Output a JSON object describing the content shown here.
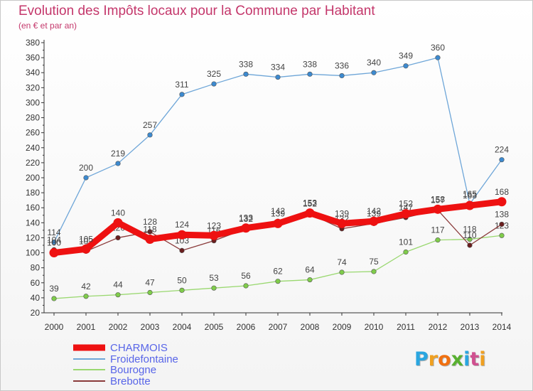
{
  "title": "Evolution des Impôts locaux pour la Commune par Habitant",
  "subtitle": "(en € et par an)",
  "logo": {
    "letters": [
      "P",
      "r",
      "o",
      "x",
      "i",
      "t",
      "i"
    ],
    "colors": [
      "#2aa6e0",
      "#f0a020",
      "#f07010",
      "#58b030",
      "#2aa6e0",
      "#d05090",
      "#f0a020"
    ]
  },
  "chart_data": {
    "type": "line",
    "x": [
      "2000",
      "2001",
      "2002",
      "2003",
      "2004",
      "2005",
      "2006",
      "2007",
      "2008",
      "2009",
      "2010",
      "2011",
      "2012",
      "2013",
      "2014"
    ],
    "ylim": [
      20,
      380
    ],
    "yticks": [
      "20",
      "40",
      "60",
      "80",
      "100",
      "120",
      "140",
      "160",
      "180",
      "200",
      "220",
      "240",
      "260",
      "280",
      "300",
      "320",
      "340",
      "360",
      "380"
    ],
    "grid": false,
    "legend_position": "bottom-left",
    "series": [
      {
        "name": "Froidefontaine",
        "color": "#6ea6d8",
        "marker": "#3c8ad0",
        "values": [
          114,
          200,
          219,
          257,
          311,
          325,
          338,
          334,
          338,
          336,
          340,
          349,
          360,
          165,
          224
        ],
        "labels": [
          "114",
          "200",
          "219",
          "257",
          "311",
          "325",
          "338",
          "334",
          "338",
          "336",
          "340",
          "349",
          "360",
          "165",
          "224"
        ]
      },
      {
        "name": "Bourogne",
        "color": "#9ad870",
        "marker": "#7fcc4a",
        "values": [
          39,
          42,
          44,
          47,
          50,
          53,
          56,
          62,
          64,
          74,
          75,
          101,
          117,
          118,
          123
        ],
        "labels": [
          "39",
          "42",
          "44",
          "47",
          "50",
          "53",
          "56",
          "62",
          "64",
          "74",
          "75",
          "101",
          "117",
          "118",
          "123"
        ]
      },
      {
        "name": "Brebotte",
        "color": "#8a3a3a",
        "marker": "#6a1e1e",
        "values": [
          104,
          102,
          120,
          128,
          103,
          116,
          132,
          142,
          152,
          132,
          139,
          147,
          157,
          110,
          138
        ],
        "labels": [
          "104",
          "102",
          "120",
          "128",
          "103",
          "116",
          "132",
          "142",
          "152",
          "132",
          "139",
          "147",
          "157",
          "110",
          "138"
        ]
      },
      {
        "name": "CHARMOIS",
        "color": "#ee1111",
        "marker": "#ee1111",
        "values": [
          100,
          105,
          140,
          118,
          124,
          123,
          133,
          139,
          153,
          139,
          142,
          152,
          158,
          163,
          168
        ],
        "labels": [
          "100",
          "105",
          "140",
          "118",
          "124",
          "123",
          "133",
          "139",
          "153",
          "139",
          "142",
          "152",
          "158",
          "163",
          "168"
        ]
      }
    ],
    "legend": [
      "CHARMOIS",
      "Froidefontaine",
      "Bourogne",
      "Brebotte"
    ]
  }
}
